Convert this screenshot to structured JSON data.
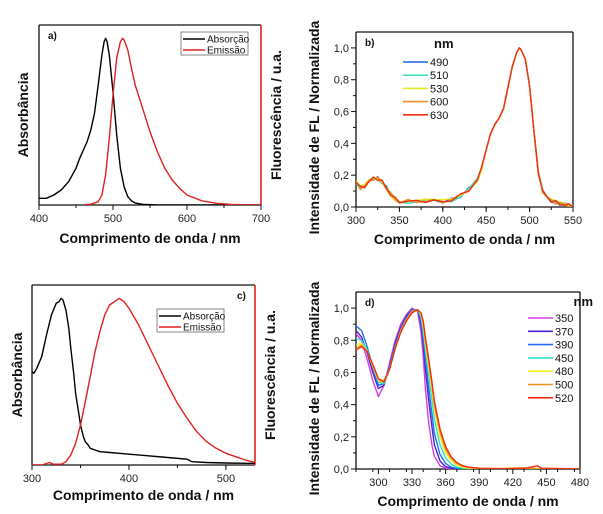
{
  "chart_data": [
    {
      "id": "a",
      "type": "line",
      "panel_label": "a)",
      "xlabel": "Comprimento de onda / nm",
      "ylabel_left": "Absorbância",
      "ylabel_right": "Fluorescência / u.a.",
      "xlim": [
        400,
        700
      ],
      "ylim": [
        0,
        1.08
      ],
      "xticks": [
        400,
        500,
        600,
        700
      ],
      "right_axis_color": "#e02020",
      "legend_position": "top-right",
      "series": [
        {
          "name": "Absorção",
          "color": "#000000",
          "x": [
            400,
            410,
            420,
            430,
            440,
            450,
            455,
            460,
            465,
            470,
            475,
            480,
            485,
            488,
            490,
            492,
            495,
            500,
            505,
            510,
            515,
            520,
            525,
            530,
            540,
            560,
            600,
            700
          ],
          "y": [
            0.04,
            0.04,
            0.06,
            0.09,
            0.14,
            0.22,
            0.28,
            0.33,
            0.38,
            0.45,
            0.55,
            0.72,
            0.9,
            0.98,
            1.0,
            0.98,
            0.9,
            0.68,
            0.42,
            0.22,
            0.11,
            0.05,
            0.025,
            0.012,
            0.004,
            0.0,
            0.0,
            0.0
          ]
        },
        {
          "name": "Emissão",
          "color": "#e02020",
          "x": [
            460,
            470,
            480,
            485,
            490,
            495,
            500,
            505,
            510,
            513,
            515,
            520,
            525,
            530,
            540,
            550,
            560,
            570,
            580,
            590,
            600,
            620,
            640,
            660,
            700
          ],
          "y": [
            0.0,
            0.005,
            0.02,
            0.06,
            0.18,
            0.4,
            0.66,
            0.88,
            0.98,
            1.0,
            0.99,
            0.93,
            0.82,
            0.72,
            0.58,
            0.44,
            0.32,
            0.22,
            0.15,
            0.1,
            0.06,
            0.025,
            0.01,
            0.003,
            0.0
          ]
        }
      ]
    },
    {
      "id": "b",
      "type": "line",
      "panel_label": "b)",
      "xlabel": "Comprimento de onda / nm",
      "ylabel": "Intensidade de FL / Normalizada",
      "xlim": [
        300,
        550
      ],
      "ylim": [
        0,
        1.1
      ],
      "xticks": [
        300,
        350,
        400,
        450,
        500,
        550
      ],
      "yticks": [
        "0,0",
        "0,2",
        "0,4",
        "0,6",
        "0,8",
        "1,0"
      ],
      "ytick_values": [
        0,
        0.2,
        0.4,
        0.6,
        0.8,
        1.0
      ],
      "legend_title": "nm",
      "legend_position": "top-left",
      "series": [
        {
          "name": "490",
          "color": "#2060e0"
        },
        {
          "name": "510",
          "color": "#40e0c0"
        },
        {
          "name": "530",
          "color": "#e8e820"
        },
        {
          "name": "600",
          "color": "#f09020"
        },
        {
          "name": "630",
          "color": "#f03010"
        }
      ],
      "shared_x": [
        300,
        305,
        310,
        315,
        320,
        325,
        330,
        335,
        340,
        345,
        350,
        360,
        370,
        380,
        390,
        400,
        410,
        420,
        430,
        440,
        445,
        450,
        455,
        460,
        465,
        470,
        475,
        480,
        485,
        488,
        490,
        495,
        500,
        505,
        510,
        515,
        520,
        525,
        530,
        535,
        540,
        545,
        550
      ],
      "shared_y": [
        0.16,
        0.12,
        0.13,
        0.16,
        0.18,
        0.18,
        0.16,
        0.12,
        0.08,
        0.05,
        0.035,
        0.035,
        0.035,
        0.04,
        0.035,
        0.035,
        0.045,
        0.07,
        0.11,
        0.17,
        0.25,
        0.36,
        0.46,
        0.52,
        0.56,
        0.62,
        0.75,
        0.88,
        0.97,
        1.0,
        0.99,
        0.93,
        0.76,
        0.48,
        0.22,
        0.1,
        0.06,
        0.04,
        0.03,
        0.02,
        0.015,
        0.01,
        0.0
      ]
    },
    {
      "id": "c",
      "type": "line",
      "panel_label": "c)",
      "xlabel": "Comprimento de onda / nm",
      "ylabel_left": "Absorbância",
      "ylabel_right": "Fluorescência / u.a.",
      "xlim": [
        300,
        530
      ],
      "ylim": [
        0,
        1.08
      ],
      "xticks": [
        300,
        400,
        500
      ],
      "right_axis_color": "#e02020",
      "legend_position": "top-right",
      "series": [
        {
          "name": "Absorção",
          "color": "#000000",
          "x": [
            300,
            302,
            305,
            310,
            315,
            320,
            325,
            328,
            330,
            332,
            335,
            338,
            340,
            343,
            345,
            348,
            350,
            353,
            355,
            358,
            360,
            365,
            370,
            380,
            390,
            400,
            420,
            440,
            460,
            465,
            480,
            500,
            520,
            530
          ],
          "y": [
            0.56,
            0.55,
            0.58,
            0.65,
            0.78,
            0.9,
            0.97,
            0.98,
            1.0,
            0.99,
            0.93,
            0.82,
            0.7,
            0.55,
            0.43,
            0.32,
            0.24,
            0.17,
            0.14,
            0.12,
            0.1,
            0.09,
            0.08,
            0.075,
            0.07,
            0.065,
            0.055,
            0.045,
            0.035,
            0.02,
            0.015,
            0.012,
            0.01,
            0.01
          ]
        },
        {
          "name": "Emissão",
          "color": "#e02020",
          "x": [
            300,
            310,
            318,
            322,
            330,
            335,
            340,
            345,
            350,
            355,
            360,
            365,
            370,
            375,
            380,
            385,
            390,
            395,
            400,
            410,
            420,
            430,
            440,
            450,
            460,
            470,
            480,
            490,
            500,
            510,
            520,
            530
          ],
          "y": [
            0.0,
            0.0,
            0.015,
            0.005,
            0.005,
            0.02,
            0.06,
            0.13,
            0.24,
            0.38,
            0.53,
            0.68,
            0.8,
            0.9,
            0.96,
            0.98,
            1.0,
            0.98,
            0.94,
            0.84,
            0.72,
            0.6,
            0.48,
            0.37,
            0.28,
            0.2,
            0.14,
            0.1,
            0.07,
            0.05,
            0.03,
            0.015
          ]
        }
      ]
    },
    {
      "id": "d",
      "type": "line",
      "panel_label": "d)",
      "xlabel": "Comprimento de onda / nm",
      "ylabel": "Intensidade de FL / Normalizada",
      "xlim": [
        280,
        480
      ],
      "ylim": [
        0,
        1.1
      ],
      "xticks": [
        300,
        330,
        360,
        390,
        420,
        450,
        480
      ],
      "yticks": [
        "0,0",
        "0,2",
        "0,4",
        "0,6",
        "0,8",
        "1,0"
      ],
      "ytick_values": [
        0,
        0.2,
        0.4,
        0.6,
        0.8,
        1.0
      ],
      "legend_title": "nm",
      "legend_position": "top-right",
      "series": [
        {
          "name": "350",
          "color": "#d040e0",
          "x": [
            280,
            285,
            290,
            295,
            300,
            305,
            310,
            315,
            320,
            325,
            330,
            335,
            338,
            340,
            342,
            345,
            348,
            350,
            355,
            360,
            365,
            370,
            480
          ],
          "y": [
            0.84,
            0.8,
            0.68,
            0.55,
            0.45,
            0.52,
            0.66,
            0.8,
            0.9,
            0.96,
            1.0,
            0.98,
            0.85,
            0.7,
            0.5,
            0.28,
            0.14,
            0.08,
            0.02,
            0.005,
            0.0,
            0.0,
            0.0
          ]
        },
        {
          "name": "370",
          "color": "#5020d0",
          "x": [
            280,
            285,
            290,
            295,
            300,
            305,
            310,
            315,
            320,
            325,
            330,
            335,
            338,
            340,
            342,
            345,
            348,
            350,
            355,
            360,
            365,
            370,
            480
          ],
          "y": [
            0.86,
            0.82,
            0.72,
            0.6,
            0.5,
            0.52,
            0.64,
            0.78,
            0.88,
            0.95,
            0.99,
            0.99,
            0.9,
            0.78,
            0.62,
            0.42,
            0.25,
            0.15,
            0.05,
            0.015,
            0.005,
            0.0,
            0.0
          ]
        },
        {
          "name": "390",
          "color": "#2070f0",
          "x": [
            280,
            285,
            290,
            295,
            300,
            305,
            310,
            315,
            320,
            325,
            330,
            335,
            338,
            340,
            342,
            345,
            348,
            350,
            355,
            360,
            365,
            370,
            375,
            480
          ],
          "y": [
            0.89,
            0.86,
            0.76,
            0.63,
            0.52,
            0.53,
            0.64,
            0.77,
            0.87,
            0.94,
            0.99,
            0.99,
            0.92,
            0.82,
            0.68,
            0.5,
            0.33,
            0.22,
            0.09,
            0.035,
            0.012,
            0.004,
            0.0,
            0.0
          ]
        },
        {
          "name": "450",
          "color": "#30e0c8",
          "x": [
            280,
            285,
            290,
            295,
            300,
            305,
            310,
            315,
            320,
            325,
            330,
            335,
            338,
            340,
            342,
            345,
            348,
            350,
            355,
            360,
            365,
            370,
            375,
            380,
            390,
            480
          ],
          "y": [
            0.81,
            0.8,
            0.74,
            0.64,
            0.54,
            0.53,
            0.62,
            0.75,
            0.86,
            0.93,
            0.98,
            0.99,
            0.95,
            0.86,
            0.74,
            0.58,
            0.42,
            0.31,
            0.15,
            0.07,
            0.03,
            0.012,
            0.005,
            0.002,
            0.0,
            0.0
          ]
        },
        {
          "name": "480",
          "color": "#f0f020",
          "x": [
            280,
            285,
            290,
            295,
            300,
            305,
            310,
            315,
            320,
            325,
            330,
            335,
            338,
            340,
            342,
            345,
            348,
            350,
            355,
            360,
            365,
            370,
            375,
            380,
            390,
            400,
            480
          ],
          "y": [
            0.77,
            0.78,
            0.73,
            0.64,
            0.55,
            0.54,
            0.62,
            0.75,
            0.86,
            0.93,
            0.98,
            0.99,
            0.96,
            0.89,
            0.78,
            0.63,
            0.48,
            0.37,
            0.2,
            0.1,
            0.05,
            0.025,
            0.012,
            0.006,
            0.002,
            0.0,
            0.0
          ]
        },
        {
          "name": "500",
          "color": "#f09020",
          "x": [
            280,
            285,
            290,
            295,
            300,
            305,
            310,
            315,
            320,
            325,
            330,
            335,
            338,
            340,
            342,
            345,
            348,
            350,
            355,
            360,
            365,
            370,
            375,
            380,
            390,
            400,
            410,
            428,
            440,
            480
          ],
          "y": [
            0.75,
            0.77,
            0.73,
            0.65,
            0.56,
            0.55,
            0.62,
            0.75,
            0.86,
            0.93,
            0.98,
            0.99,
            0.97,
            0.91,
            0.8,
            0.66,
            0.51,
            0.4,
            0.23,
            0.12,
            0.065,
            0.035,
            0.018,
            0.01,
            0.004,
            0.002,
            0.004,
            0.008,
            0.003,
            0.0
          ]
        },
        {
          "name": "520",
          "color": "#f03010",
          "x": [
            280,
            285,
            290,
            295,
            300,
            305,
            310,
            315,
            320,
            325,
            330,
            335,
            338,
            340,
            342,
            345,
            348,
            350,
            355,
            360,
            365,
            370,
            375,
            380,
            390,
            400,
            410,
            430,
            442,
            446,
            480
          ],
          "y": [
            0.74,
            0.76,
            0.73,
            0.65,
            0.56,
            0.54,
            0.62,
            0.75,
            0.85,
            0.92,
            0.97,
            0.99,
            0.97,
            0.92,
            0.82,
            0.68,
            0.53,
            0.42,
            0.25,
            0.14,
            0.075,
            0.04,
            0.022,
            0.012,
            0.005,
            0.003,
            0.002,
            0.003,
            0.02,
            0.005,
            0.0
          ]
        }
      ]
    }
  ]
}
